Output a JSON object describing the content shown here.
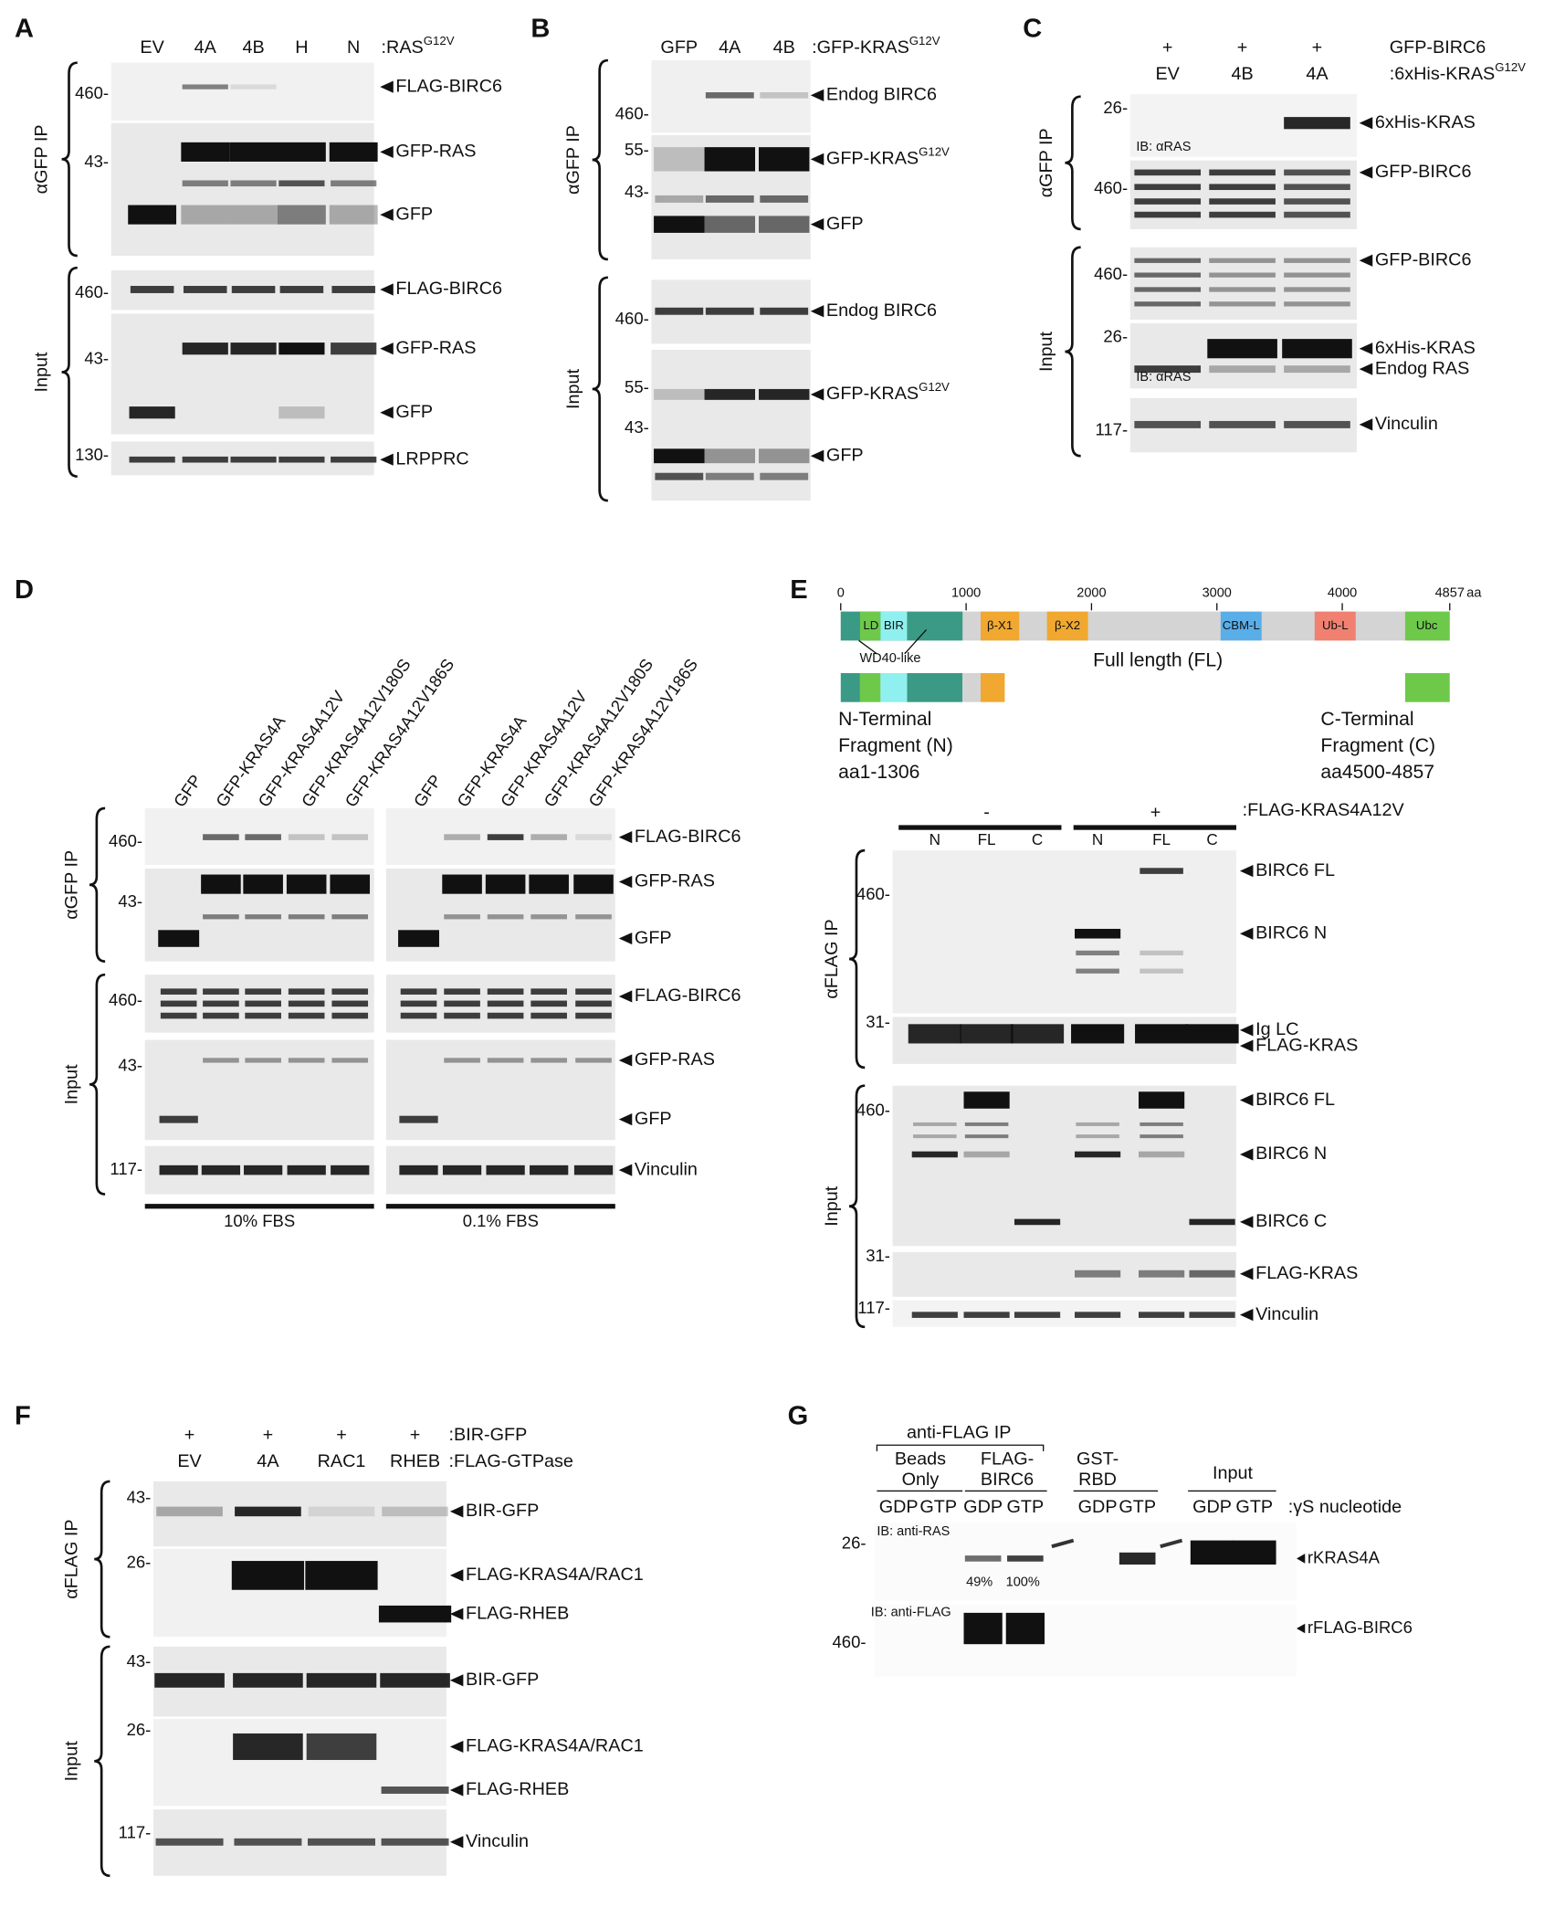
{
  "panels": {
    "a": {
      "letter": "A",
      "lanes": [
        "EV",
        "4A",
        "4B",
        "H",
        "N"
      ],
      "lane_key": {
        "text": ":RAS",
        "sup": "G12V"
      },
      "sections": [
        "αGFP IP",
        "Input"
      ],
      "markers": [
        "460-",
        "43-",
        "460-",
        "43-",
        "130-"
      ],
      "targets": [
        "FLAG-BIRC6",
        "GFP-RAS",
        "GFP",
        "FLAG-BIRC6",
        "GFP-RAS",
        "GFP",
        "LRPPRC"
      ]
    },
    "b": {
      "letter": "B",
      "lanes": [
        "GFP",
        "4A",
        "4B"
      ],
      "lane_key": {
        "text": ":GFP-KRAS",
        "sup": "G12V"
      },
      "sections": [
        "αGFP IP",
        "Input"
      ],
      "markers": [
        "460-",
        "55-",
        "43-",
        "460-",
        "55-",
        "43-"
      ],
      "targets": [
        "Endog BIRC6",
        {
          "text": "GFP-KRAS",
          "sup": "G12V"
        },
        "GFP",
        "Endog BIRC6",
        {
          "text": "GFP-KRAS",
          "sup": "G12V"
        },
        "GFP"
      ]
    },
    "c": {
      "letter": "C",
      "plus": [
        "+",
        "+",
        "+"
      ],
      "plus_key": "GFP-BIRC6",
      "lanes": [
        "EV",
        "4B",
        "4A"
      ],
      "lane_key": {
        "text": ":6xHis-KRAS",
        "sup": "G12V"
      },
      "sections": [
        "αGFP IP",
        "Input"
      ],
      "markers": [
        "26-",
        "460-",
        "460-",
        "26-",
        "117-"
      ],
      "blot_notes": [
        "IB: αRAS",
        "IB: αRAS"
      ],
      "targets": [
        "6xHis-KRAS",
        "GFP-BIRC6",
        "GFP-BIRC6",
        "6xHis-KRAS",
        "Endog RAS",
        "Vinculin"
      ]
    },
    "d": {
      "letter": "D",
      "lanes": [
        "GFP",
        "GFP-KRAS4A",
        "GFP-KRAS4A12V",
        "GFP-KRAS4A12V180S",
        "GFP-KRAS4A12V186S",
        "GFP",
        "GFP-KRAS4A",
        "GFP-KRAS4A12V",
        "GFP-KRAS4A12V180S",
        "GFP-KRAS4A12V186S"
      ],
      "sections": [
        "αGFP IP",
        "Input"
      ],
      "markers": [
        "460-",
        "43-",
        "460-",
        "43-",
        "117-"
      ],
      "targets": [
        "FLAG-BIRC6",
        "GFP-RAS",
        "GFP",
        "FLAG-BIRC6",
        "GFP-RAS",
        "GFP",
        "Vinculin"
      ],
      "conditions": [
        "10% FBS",
        "0.1% FBS"
      ]
    },
    "e": {
      "letter": "E",
      "scale": [
        0,
        1000,
        2000,
        3000,
        4000,
        4857
      ],
      "scale_unit": "aa",
      "domains": [
        "LD",
        "BIR",
        "β-X1",
        "β-X2",
        "CBM-L",
        "Ub-L",
        "Ubc"
      ],
      "domain_note": "WD40-like",
      "construct": "Full length (FL)",
      "fragments": [
        [
          "N-Terminal",
          "Fragment (N)",
          "aa1-1306"
        ],
        [
          "C-Terminal",
          "Fragment (C)",
          "aa4500-4857"
        ]
      ],
      "treatment": [
        "-",
        "+"
      ],
      "treatment_key": ":FLAG-KRAS4A12V",
      "lanes": [
        "N",
        "FL",
        "C",
        "N",
        "FL",
        "C"
      ],
      "sections": [
        "αFLAG IP",
        "Input"
      ],
      "markers": [
        "460-",
        "31-",
        "460-",
        "31-",
        "117-"
      ],
      "targets": [
        "BIRC6 FL",
        "BIRC6 N",
        "Ig LC",
        "FLAG-KRAS",
        "BIRC6 FL",
        "BIRC6 N",
        "BIRC6 C",
        "FLAG-KRAS",
        "Vinculin"
      ]
    },
    "f": {
      "letter": "F",
      "plus": [
        "+",
        "+",
        "+",
        "+"
      ],
      "plus_key": ":BIR-GFP",
      "lanes": [
        "EV",
        "4A",
        "RAC1",
        "RHEB"
      ],
      "lane_key": ":FLAG-GTPase",
      "sections": [
        "αFLAG IP",
        "Input"
      ],
      "markers": [
        "43-",
        "26-",
        "43-",
        "26-",
        "117-"
      ],
      "targets": [
        "BIR-GFP",
        "FLAG-KRAS4A/RAC1",
        "FLAG-RHEB",
        "BIR-GFP",
        "FLAG-KRAS4A/RAC1",
        "FLAG-RHEB",
        "Vinculin"
      ]
    },
    "g": {
      "letter": "G",
      "ip_header": "anti-FLAG IP",
      "groups": [
        [
          "Beads",
          "Only"
        ],
        [
          "FLAG-",
          "BIRC6"
        ],
        [
          "GST-",
          "RBD"
        ],
        [
          "Input"
        ]
      ],
      "nucleotides": [
        "GDP",
        "GTP",
        "GDP",
        "GTP",
        "GDP",
        "GTP",
        "GDP",
        "GTP"
      ],
      "nucleotide_key": ":γS nucleotide",
      "blot_notes": [
        "IB: anti-RAS",
        "IB: anti-FLAG"
      ],
      "markers": [
        "26-",
        "460-"
      ],
      "quantification": [
        "49%",
        "100%"
      ],
      "targets": [
        "rKRAS4A",
        "rFLAG-BIRC6"
      ]
    }
  }
}
